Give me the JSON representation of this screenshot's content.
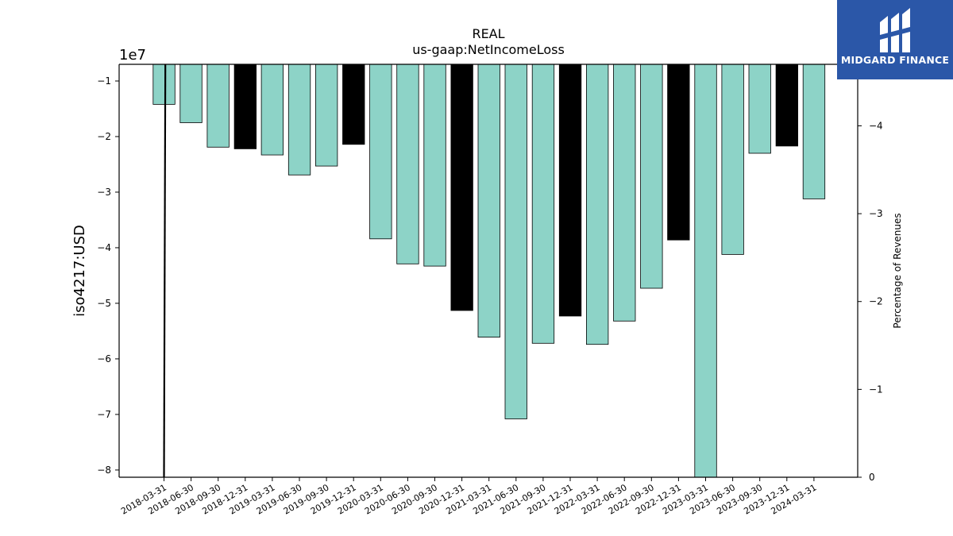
{
  "brand": {
    "name": "MIDGARD FINANCE",
    "logo_color": "#2b57a8"
  },
  "chart_data": {
    "type": "bar",
    "title": "REAL",
    "subtitle": "us-gaap:NetIncomeLoss",
    "ylabel": "iso4217:USD",
    "y_offset_label": "1e7",
    "y2label": "Percentage of Revenues",
    "categories": [
      "2018-03-31",
      "2018-06-30",
      "2018-09-30",
      "2018-12-31",
      "2019-03-31",
      "2019-06-30",
      "2019-09-30",
      "2019-12-31",
      "2020-03-31",
      "2020-06-30",
      "2020-09-30",
      "2020-12-31",
      "2021-03-31",
      "2021-06-30",
      "2021-09-30",
      "2021-12-31",
      "2022-03-31",
      "2022-06-30",
      "2022-09-30",
      "2022-12-31",
      "2023-03-31",
      "2023-06-30",
      "2023-09-30",
      "2023-12-31",
      "2024-03-31"
    ],
    "values": [
      -14200000,
      -17500000,
      -21900000,
      -22200000,
      -23300000,
      -26900000,
      -25300000,
      -21400000,
      -38400000,
      -42900000,
      -43300000,
      -51300000,
      -56100000,
      -70800000,
      -57200000,
      -52300000,
      -57400000,
      -53200000,
      -47300000,
      -38600000,
      -82000000,
      -41200000,
      -23000000,
      -21700000,
      -31200000
    ],
    "bar_highlight": [
      "normal",
      "normal",
      "normal",
      "dark",
      "normal",
      "normal",
      "normal",
      "dark",
      "normal",
      "normal",
      "normal",
      "dark",
      "normal",
      "normal",
      "normal",
      "dark",
      "normal",
      "normal",
      "normal",
      "dark",
      "normal",
      "normal",
      "normal",
      "dark",
      "normal"
    ],
    "colors": {
      "normal": "#8dd3c7",
      "dark": "#000000",
      "line": "#000000"
    },
    "ylim": [
      -81300000,
      -7000000
    ],
    "yticks": [
      -10000000,
      -20000000,
      -30000000,
      -40000000,
      -50000000,
      -60000000,
      -70000000,
      -80000000
    ],
    "ytick_labels": [
      "−1",
      "−2",
      "−3",
      "−4",
      "−5",
      "−6",
      "−7",
      "−8"
    ],
    "y2lim": [
      0,
      -4.7
    ],
    "y2ticks": [
      0,
      -1,
      -2,
      -3,
      -4
    ],
    "y2tick_labels": [
      "0",
      "−1",
      "−2",
      "−3",
      "−4"
    ],
    "line_series": {
      "x_index": [
        0,
        0.05
      ],
      "values": [
        0,
        -4.7
      ]
    },
    "grid": false,
    "legend": "none"
  }
}
